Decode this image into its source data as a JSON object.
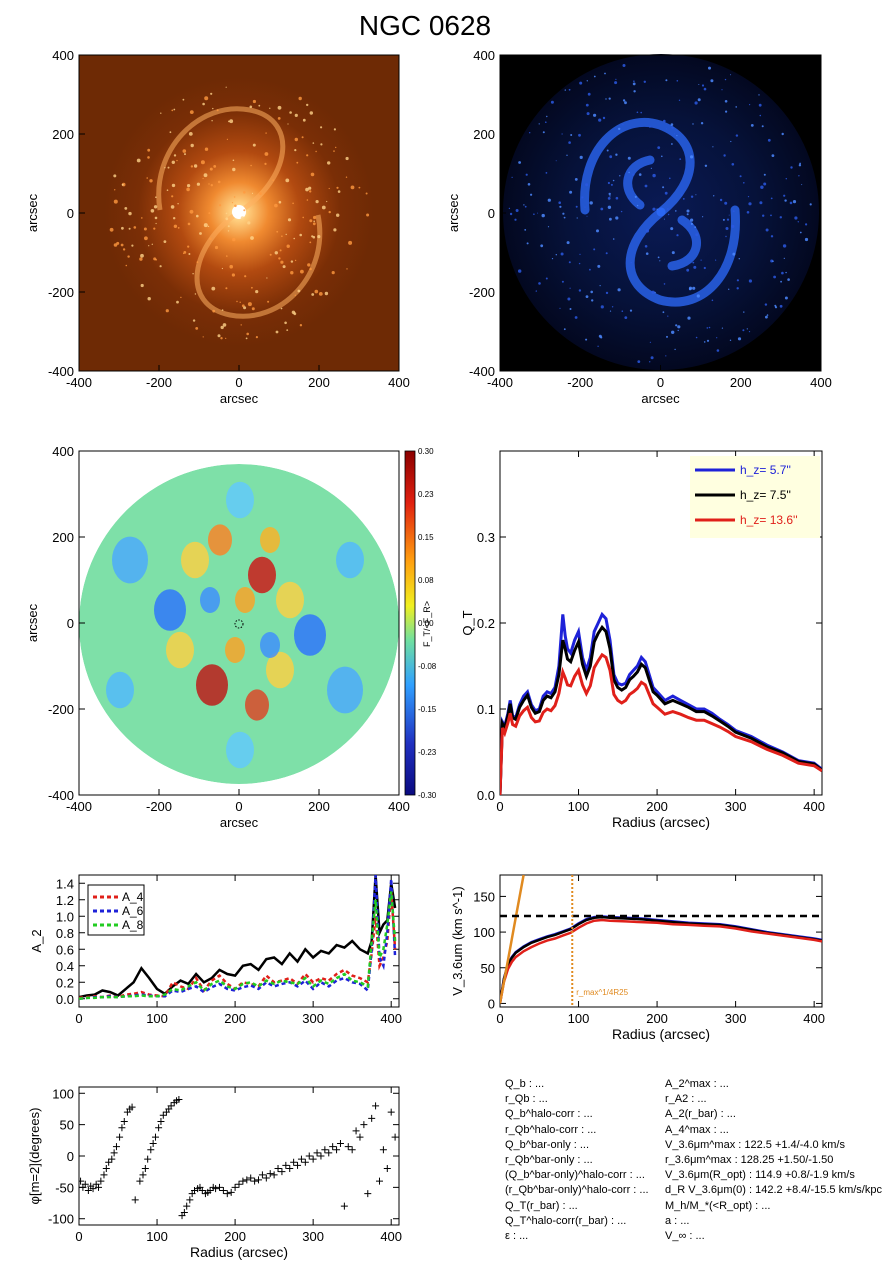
{
  "title": "NGC 0628",
  "colors": {
    "blue": "#1e22d8",
    "black": "#000000",
    "red": "#e0201a",
    "green": "#22cc22",
    "orange": "#e08a20",
    "cream": "#ffffe0"
  },
  "images": [
    {
      "name": "3.6um-image",
      "xlabel": "arcsec",
      "ylabel": "arcsec",
      "xticks": [
        "-400",
        "-200",
        "0",
        "200",
        "400"
      ],
      "yticks": [
        "400",
        "200",
        "0",
        "-200",
        "-400"
      ]
    },
    {
      "name": "residual-image",
      "xlabel": "arcsec",
      "ylabel": "arcsec",
      "xticks": [
        "-400",
        "-200",
        "0",
        "200",
        "400"
      ],
      "yticks": [
        "400",
        "200",
        "0",
        "-200",
        "-400"
      ]
    },
    {
      "name": "force-map",
      "xlabel": "arcsec",
      "ylabel": "arcsec",
      "xticks": [
        "-400",
        "-200",
        "0",
        "200",
        "400"
      ],
      "yticks": [
        "400",
        "200",
        "0",
        "-200",
        "-400"
      ],
      "colorbar_label": "F_T/<F_R>",
      "colorbar_ticks": [
        "0.30",
        "0.23",
        "0.15",
        "0.08",
        "0.00",
        "-0.08",
        "-0.15",
        "-0.23",
        "-0.30"
      ]
    }
  ],
  "chart_data": [
    {
      "type": "line",
      "panel": "QT-profile",
      "xlabel": "Radius (arcsec)",
      "ylabel": "Q_T",
      "xlim": [
        0,
        410
      ],
      "ylim": [
        0,
        0.4
      ],
      "xticks": [
        "0",
        "100",
        "200",
        "300",
        "400"
      ],
      "yticks": [
        "0.0",
        "0.1",
        "0.2",
        "0.3"
      ],
      "legend": {
        "placement": "top-right",
        "entries": [
          {
            "label": "h_z=  5.7''",
            "color": "#1e22d8"
          },
          {
            "label": "h_z=  7.5''",
            "color": "#000000"
          },
          {
            "label": "h_z= 13.6''",
            "color": "#e0201a"
          }
        ]
      },
      "x": [
        0,
        3,
        6,
        10,
        13,
        16,
        20,
        25,
        30,
        35,
        40,
        45,
        50,
        55,
        60,
        65,
        70,
        75,
        80,
        83,
        86,
        90,
        95,
        100,
        105,
        110,
        115,
        120,
        125,
        130,
        135,
        140,
        145,
        150,
        155,
        160,
        165,
        170,
        175,
        180,
        185,
        190,
        195,
        200,
        210,
        220,
        230,
        240,
        250,
        260,
        270,
        280,
        290,
        300,
        320,
        340,
        360,
        380,
        400,
        410
      ],
      "series": [
        {
          "name": "h_z=  5.7''",
          "color": "#1e22d8",
          "values": [
            0.0,
            0.085,
            0.08,
            0.095,
            0.11,
            0.092,
            0.09,
            0.105,
            0.115,
            0.12,
            0.105,
            0.098,
            0.1,
            0.115,
            0.12,
            0.118,
            0.125,
            0.15,
            0.21,
            0.185,
            0.17,
            0.165,
            0.18,
            0.19,
            0.16,
            0.145,
            0.16,
            0.19,
            0.2,
            0.21,
            0.205,
            0.18,
            0.14,
            0.13,
            0.128,
            0.13,
            0.14,
            0.145,
            0.15,
            0.16,
            0.155,
            0.14,
            0.125,
            0.12,
            0.11,
            0.115,
            0.11,
            0.105,
            0.1,
            0.1,
            0.095,
            0.088,
            0.082,
            0.075,
            0.068,
            0.058,
            0.05,
            0.04,
            0.037,
            0.03
          ]
        },
        {
          "name": "h_z=  7.5''",
          "color": "#000000",
          "values": [
            0.0,
            0.083,
            0.078,
            0.092,
            0.106,
            0.09,
            0.088,
            0.102,
            0.11,
            0.116,
            0.102,
            0.095,
            0.097,
            0.11,
            0.115,
            0.113,
            0.12,
            0.14,
            0.18,
            0.17,
            0.158,
            0.155,
            0.168,
            0.178,
            0.152,
            0.138,
            0.15,
            0.178,
            0.188,
            0.195,
            0.19,
            0.17,
            0.134,
            0.125,
            0.122,
            0.125,
            0.134,
            0.138,
            0.143,
            0.152,
            0.148,
            0.134,
            0.12,
            0.116,
            0.106,
            0.11,
            0.106,
            0.102,
            0.097,
            0.097,
            0.092,
            0.086,
            0.08,
            0.073,
            0.066,
            0.056,
            0.049,
            0.039,
            0.036,
            0.029
          ]
        },
        {
          "name": "h_z= 13.6''",
          "color": "#e0201a",
          "values": [
            0.0,
            0.078,
            0.072,
            0.084,
            0.095,
            0.082,
            0.08,
            0.092,
            0.098,
            0.102,
            0.09,
            0.085,
            0.086,
            0.096,
            0.1,
            0.098,
            0.104,
            0.118,
            0.143,
            0.136,
            0.128,
            0.127,
            0.138,
            0.145,
            0.128,
            0.118,
            0.127,
            0.148,
            0.156,
            0.163,
            0.16,
            0.145,
            0.117,
            0.11,
            0.107,
            0.11,
            0.117,
            0.12,
            0.124,
            0.131,
            0.128,
            0.117,
            0.106,
            0.102,
            0.094,
            0.097,
            0.094,
            0.09,
            0.087,
            0.087,
            0.083,
            0.079,
            0.074,
            0.068,
            0.062,
            0.053,
            0.046,
            0.037,
            0.034,
            0.028
          ]
        }
      ]
    },
    {
      "type": "line",
      "panel": "Am-profile",
      "xlabel": "",
      "ylabel": "A_2",
      "xlim": [
        0,
        410
      ],
      "ylim": [
        -0.1,
        1.5
      ],
      "xticks": [
        "0",
        "100",
        "200",
        "300",
        "400"
      ],
      "yticks": [
        "0.0",
        "0.2",
        "0.4",
        "0.6",
        "0.8",
        "1.0",
        "1.2",
        "1.4"
      ],
      "legend": {
        "placement": "top-left",
        "entries": [
          {
            "label": "A_4",
            "color": "#e0201a"
          },
          {
            "label": "A_6",
            "color": "#1e22d8"
          },
          {
            "label": "A_8",
            "color": "#22cc22"
          }
        ]
      },
      "x": [
        0,
        10,
        20,
        30,
        40,
        50,
        60,
        70,
        80,
        90,
        100,
        110,
        120,
        130,
        140,
        150,
        160,
        170,
        180,
        190,
        200,
        210,
        220,
        230,
        240,
        250,
        260,
        270,
        280,
        290,
        300,
        310,
        320,
        330,
        340,
        350,
        360,
        370,
        375,
        380,
        385,
        390,
        395,
        400,
        405
      ],
      "series": [
        {
          "name": "A_2",
          "color": "#000000",
          "values": [
            0.02,
            0.04,
            0.05,
            0.1,
            0.08,
            0.04,
            0.12,
            0.2,
            0.37,
            0.25,
            0.12,
            0.06,
            0.15,
            0.22,
            0.18,
            0.3,
            0.2,
            0.25,
            0.35,
            0.3,
            0.28,
            0.4,
            0.42,
            0.35,
            0.48,
            0.5,
            0.42,
            0.55,
            0.45,
            0.6,
            0.5,
            0.58,
            0.55,
            0.65,
            0.62,
            0.7,
            0.6,
            0.55,
            0.7,
            1.5,
            0.8,
            0.9,
            0.95,
            1.4,
            1.1
          ]
        },
        {
          "name": "A_4",
          "color": "#e0201a",
          "values": [
            0.01,
            0.02,
            0.03,
            0.02,
            0.04,
            0.02,
            0.05,
            0.06,
            0.08,
            0.05,
            0.04,
            0.03,
            0.2,
            0.15,
            0.12,
            0.25,
            0.1,
            0.22,
            0.28,
            0.18,
            0.12,
            0.2,
            0.18,
            0.15,
            0.28,
            0.2,
            0.22,
            0.25,
            0.18,
            0.3,
            0.2,
            0.25,
            0.22,
            0.3,
            0.35,
            0.28,
            0.25,
            0.2,
            0.55,
            1.0,
            0.4,
            0.5,
            0.7,
            1.3,
            0.6
          ]
        },
        {
          "name": "A_6",
          "color": "#1e22d8",
          "values": [
            0.0,
            0.01,
            0.02,
            0.02,
            0.03,
            0.02,
            0.03,
            0.04,
            0.05,
            0.04,
            0.03,
            0.03,
            0.1,
            0.08,
            0.12,
            0.15,
            0.08,
            0.14,
            0.18,
            0.12,
            0.1,
            0.14,
            0.16,
            0.12,
            0.2,
            0.15,
            0.18,
            0.2,
            0.15,
            0.22,
            0.12,
            0.2,
            0.15,
            0.22,
            0.25,
            0.2,
            0.18,
            0.1,
            0.6,
            1.5,
            0.5,
            0.4,
            0.8,
            1.45,
            0.5
          ]
        },
        {
          "name": "A_8",
          "color": "#22cc22",
          "values": [
            0.0,
            0.01,
            0.01,
            0.02,
            0.02,
            0.02,
            0.03,
            0.03,
            0.04,
            0.03,
            0.03,
            0.05,
            0.12,
            0.1,
            0.15,
            0.2,
            0.1,
            0.18,
            0.22,
            0.15,
            0.12,
            0.18,
            0.2,
            0.15,
            0.22,
            0.18,
            0.22,
            0.2,
            0.18,
            0.25,
            0.15,
            0.22,
            0.18,
            0.25,
            0.3,
            0.22,
            0.2,
            0.15,
            0.7,
            1.2,
            0.5,
            0.6,
            0.9,
            1.3,
            0.7
          ]
        }
      ]
    },
    {
      "type": "line",
      "panel": "rotation-curve",
      "xlabel": "Radius (arcsec)",
      "ylabel": "V_3.6um (km s^-1)",
      "xlim": [
        0,
        410
      ],
      "ylim": [
        -5,
        180
      ],
      "xticks": [
        "0",
        "100",
        "200",
        "300",
        "400"
      ],
      "yticks": [
        "0",
        "50",
        "100",
        "150"
      ],
      "vmax": 122.5,
      "r_marker": {
        "x": 92,
        "label": "r_max^1/4R25"
      },
      "x": [
        0,
        5,
        10,
        15,
        20,
        30,
        40,
        50,
        60,
        70,
        80,
        90,
        100,
        110,
        120,
        130,
        140,
        160,
        180,
        200,
        220,
        240,
        260,
        280,
        300,
        320,
        340,
        360,
        380,
        400,
        410
      ],
      "series": [
        {
          "name": "h_z=  5.7''",
          "color": "#1e22d8",
          "values": [
            0,
            35,
            55,
            65,
            72,
            80,
            86,
            90,
            94,
            97,
            101,
            105,
            112,
            118,
            121,
            122,
            121,
            120,
            119,
            117,
            115,
            113,
            112,
            111,
            108,
            104,
            100,
            97,
            94,
            91,
            89
          ]
        },
        {
          "name": "h_z=  7.5''",
          "color": "#000000",
          "values": [
            0,
            34,
            54,
            64,
            71,
            79,
            85,
            89,
            93,
            96,
            100,
            104,
            111,
            117,
            120,
            121,
            120,
            119,
            118,
            116,
            114,
            112,
            111,
            110,
            107,
            103,
            99,
            96,
            93,
            90,
            88
          ]
        },
        {
          "name": "h_z= 13.6''",
          "color": "#e0201a",
          "values": [
            0,
            30,
            48,
            58,
            65,
            73,
            79,
            84,
            88,
            91,
            95,
            99,
            106,
            112,
            116,
            117,
            116,
            115,
            114,
            113,
            111,
            110,
            109,
            108,
            105,
            101,
            98,
            95,
            92,
            89,
            87
          ]
        },
        {
          "name": "",
          "color": "#e08a20",
          "values": [
            0,
            30,
            60,
            90,
            120,
            180,
            null,
            null,
            null,
            null,
            null,
            null,
            null,
            null,
            null,
            null,
            null,
            null,
            null,
            null,
            null,
            null,
            null,
            null,
            null,
            null,
            null,
            null,
            null,
            null,
            null
          ]
        }
      ]
    },
    {
      "type": "scatter",
      "panel": "phase-profile",
      "xlabel": "Radius (arcsec)",
      "ylabel": "φ[m=2](degrees)",
      "xlim": [
        0,
        410
      ],
      "ylim": [
        -110,
        110
      ],
      "xticks": [
        "0",
        "100",
        "200",
        "300",
        "400"
      ],
      "yticks": [
        "-100",
        "-50",
        "0",
        "50",
        "100"
      ],
      "x": [
        2,
        5,
        8,
        12,
        15,
        18,
        22,
        25,
        28,
        32,
        35,
        38,
        42,
        45,
        48,
        52,
        55,
        58,
        62,
        65,
        68,
        72,
        78,
        82,
        85,
        88,
        92,
        95,
        98,
        102,
        105,
        108,
        112,
        115,
        118,
        122,
        125,
        128,
        132,
        135,
        138,
        142,
        145,
        148,
        152,
        155,
        158,
        162,
        165,
        168,
        172,
        175,
        180,
        185,
        190,
        195,
        200,
        205,
        210,
        215,
        220,
        225,
        230,
        235,
        240,
        245,
        250,
        255,
        260,
        265,
        270,
        275,
        280,
        285,
        290,
        295,
        300,
        305,
        310,
        315,
        320,
        325,
        330,
        335,
        340,
        345,
        350,
        355,
        360,
        365,
        370,
        375,
        380,
        385,
        390,
        395,
        400,
        405
      ],
      "y": [
        -40,
        -50,
        -45,
        -55,
        -48,
        -52,
        -45,
        -50,
        -40,
        -30,
        -20,
        -10,
        -5,
        5,
        15,
        30,
        45,
        55,
        70,
        75,
        78,
        -70,
        -40,
        -30,
        -20,
        -5,
        10,
        20,
        30,
        45,
        55,
        65,
        70,
        75,
        80,
        85,
        88,
        90,
        -95,
        -90,
        -80,
        -70,
        -60,
        -55,
        -52,
        -50,
        -55,
        -60,
        -58,
        -55,
        -50,
        -52,
        -50,
        -55,
        -60,
        -58,
        -50,
        -45,
        -40,
        -38,
        -35,
        -40,
        -38,
        -30,
        -35,
        -28,
        -30,
        -20,
        -25,
        -15,
        -20,
        -10,
        -15,
        -5,
        -10,
        0,
        -5,
        5,
        0,
        10,
        5,
        15,
        10,
        20,
        -80,
        15,
        10,
        40,
        30,
        50,
        -60,
        60,
        80,
        -40,
        10,
        -20,
        70,
        30
      ]
    }
  ],
  "params": {
    "left": [
      "Q_b : ...",
      "r_Qb : ...",
      "Q_b^halo-corr : ...",
      "r_Qb^halo-corr : ...",
      "Q_b^bar-only : ...",
      "r_Qb^bar-only : ...",
      "(Q_b^bar-only)^halo-corr : ...",
      "(r_Qb^bar-only)^halo-corr : ...",
      "Q_T(r_bar) : ...",
      "Q_T^halo-corr(r_bar) : ...",
      "ε : ..."
    ],
    "right": [
      "A_2^max : ...",
      "r_A2 : ...",
      "A_2(r_bar) : ...",
      "A_4^max : ...",
      "V_3.6μm^max : 122.5 +1.4/-4.0 km/s",
      "r_3.6μm^max : 128.25 +1.50/-1.50",
      "V_3.6μm(R_opt) : 114.9 +0.8/-1.9 km/s",
      "d_R V_3.6μm(0) : 142.2 +8.4/-15.5 km/s/kpc",
      "M_h/M_*(<R_opt) : ...",
      "a : ...",
      "V_∞ : ..."
    ]
  }
}
